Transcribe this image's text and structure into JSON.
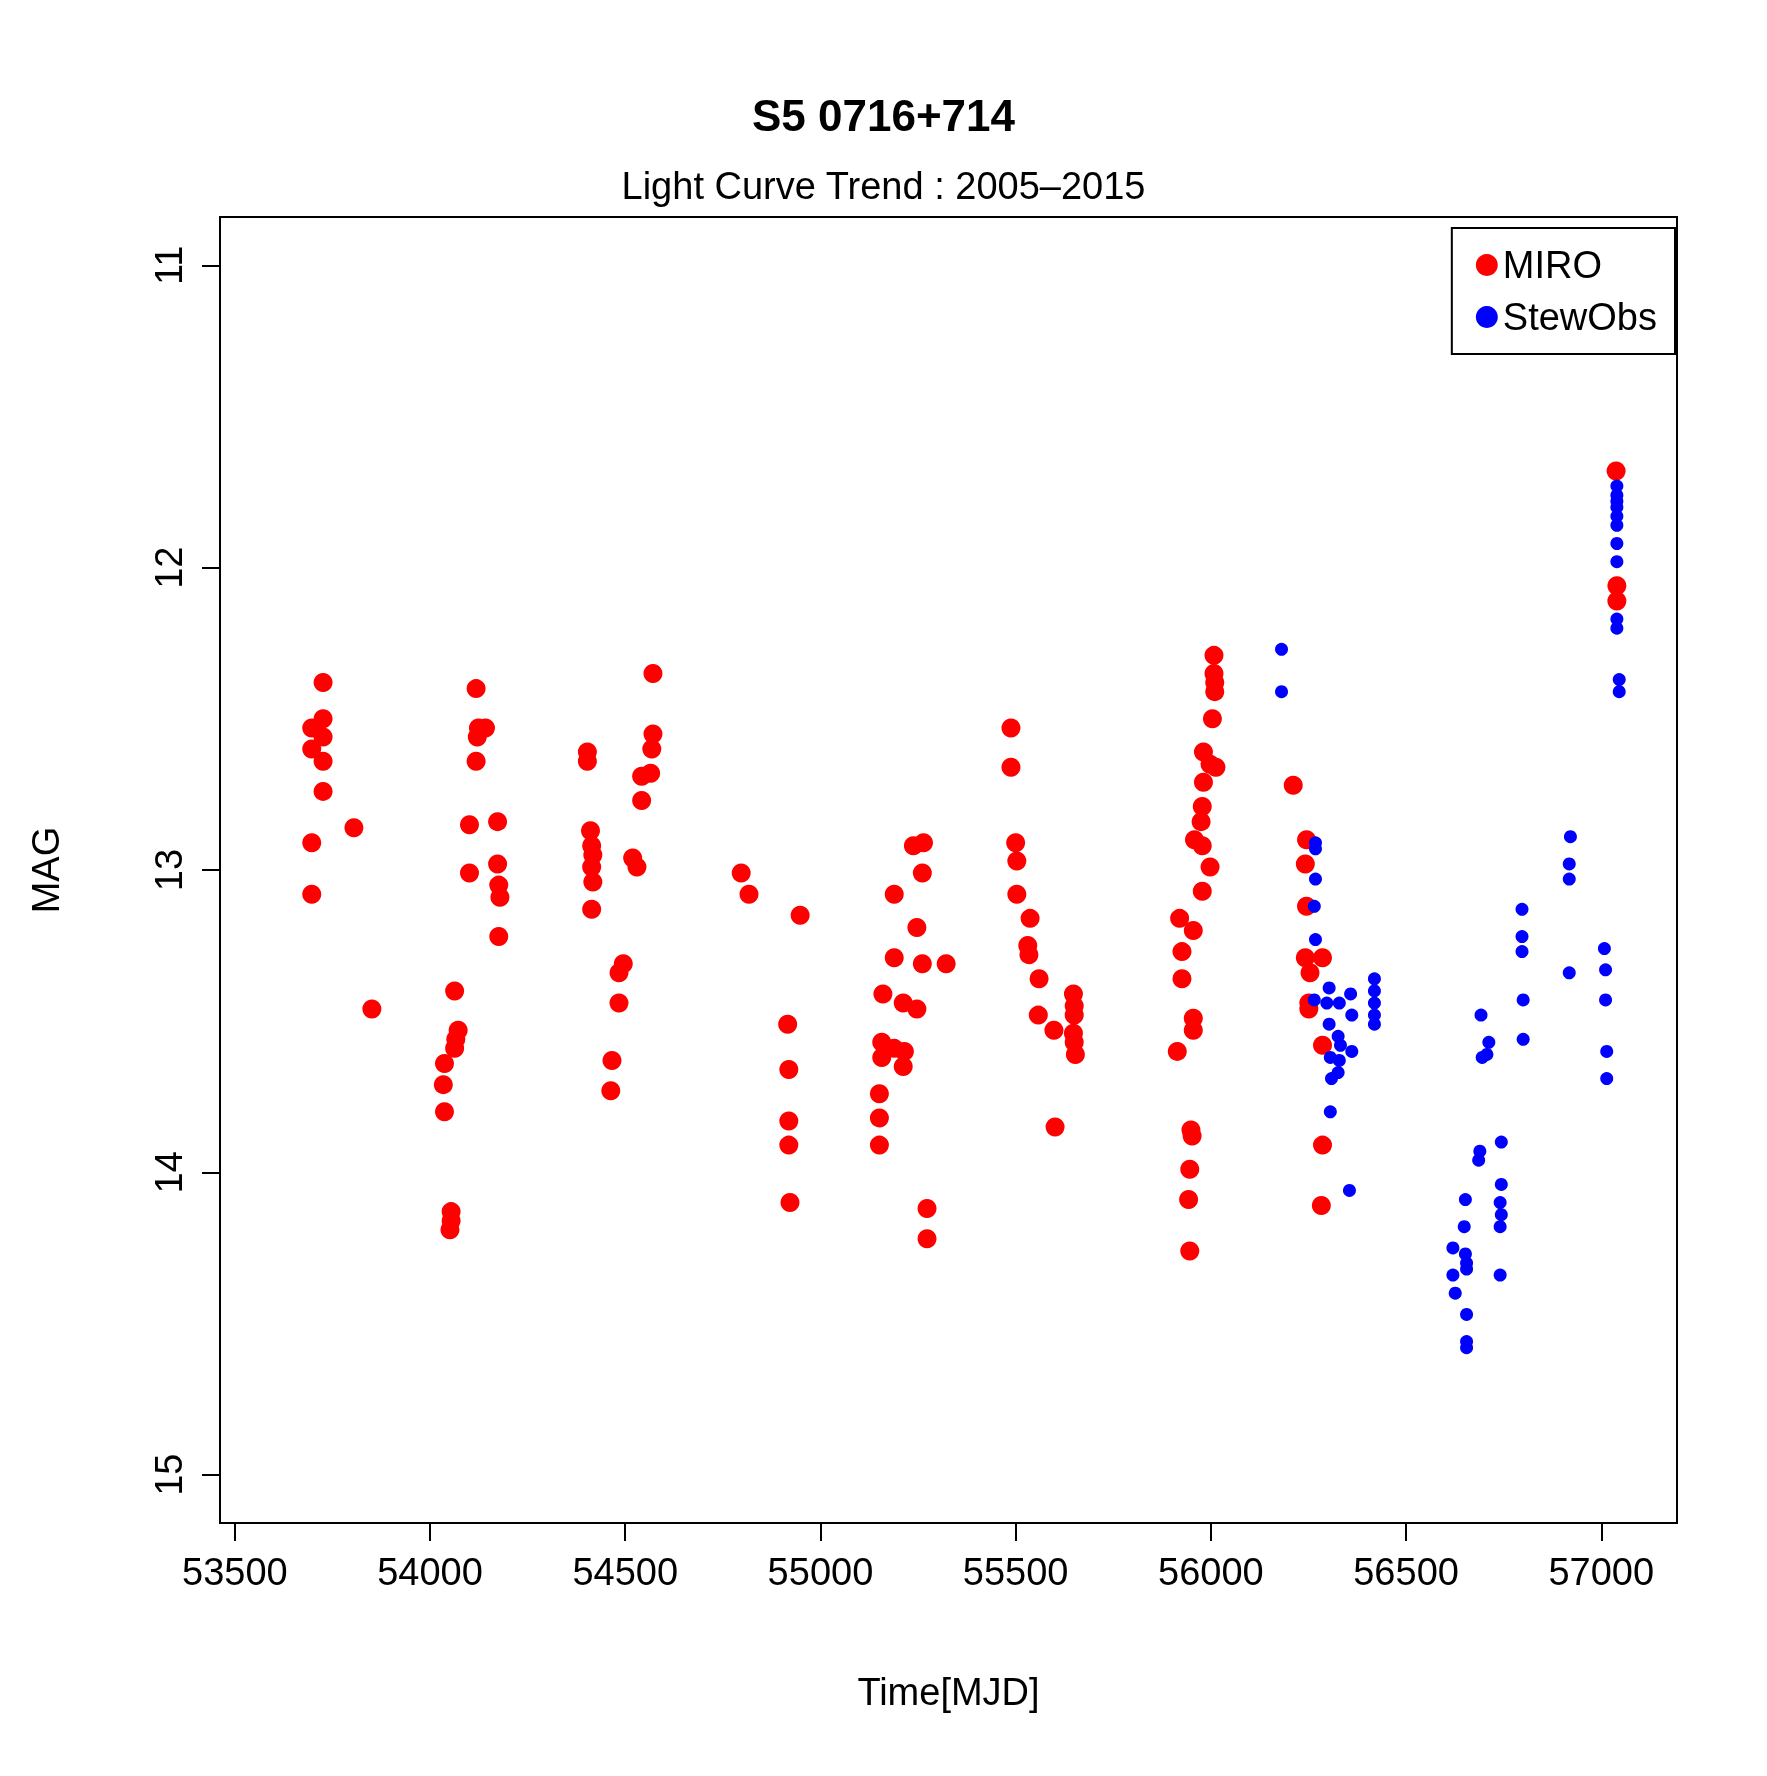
{
  "chart_data": {
    "type": "scatter",
    "title": "S5 0716+714",
    "subtitle": "Light Curve Trend : 2005–2015",
    "xlabel": "Time[MJD]",
    "ylabel": "MAG",
    "xlim": [
      53462,
      57194
    ],
    "ylim": [
      15.16,
      10.84
    ],
    "xticks": [
      53500,
      54000,
      54500,
      55000,
      55500,
      56000,
      56500,
      57000
    ],
    "yticks": [
      11,
      12,
      13,
      14,
      15
    ],
    "grid": false,
    "legend": "top right",
    "marker": "circle",
    "series": [
      {
        "name": "MIRO",
        "color": "#ff0000",
        "x": [
          53726,
          53697,
          53726,
          53726,
          53697,
          53726,
          53726,
          53697,
          53697,
          53805,
          53851,
          54063,
          54072,
          54066,
          54063,
          54037,
          54034,
          54037,
          54054,
          54054,
          54051,
          54118,
          54124,
          54142,
          54121,
          54118,
          54101,
          54173,
          54101,
          54173,
          54176,
          54179,
          54176,
          54403,
          54403,
          54411,
          54414,
          54417,
          54414,
          54417,
          54414,
          54519,
          54530,
          54542,
          54542,
          54565,
          54568,
          54571,
          54571,
          54495,
          54484,
          54484,
          54466,
          54463,
          54797,
          54817,
          54948,
          54916,
          54919,
          54919,
          54919,
          54922,
          55189,
          55189,
          55160,
          55212,
          55157,
          55157,
          55189,
          55215,
          55212,
          55151,
          55151,
          55151,
          55247,
          55247,
          55238,
          55264,
          55261,
          55261,
          55322,
          55273,
          55273,
          55488,
          55488,
          55500,
          55503,
          55503,
          55537,
          55531,
          55534,
          55560,
          55558,
          55598,
          55648,
          55650,
          55650,
          55648,
          55650,
          55653,
          55601,
          56008,
          56008,
          56010,
          56010,
          56004,
          55981,
          55998,
          56013,
          55981,
          55978,
          55975,
          55958,
          55978,
          55998,
          55978,
          55920,
          55955,
          55926,
          55926,
          55955,
          55955,
          55914,
          55949,
          55952,
          55946,
          55943,
          55946,
          56211,
          56245,
          56242,
          56245,
          56242,
          56286,
          56254,
          56251,
          56251,
          56286,
          56286,
          56283,
          57038,
          57040,
          57040
        ],
        "values": [
          12.38,
          12.53,
          12.5,
          12.56,
          12.6,
          12.64,
          12.74,
          12.91,
          13.08,
          12.86,
          13.46,
          13.4,
          13.53,
          13.56,
          13.59,
          13.64,
          13.71,
          13.8,
          14.13,
          14.16,
          14.19,
          12.4,
          12.53,
          12.53,
          12.56,
          12.64,
          12.85,
          12.84,
          13.01,
          12.98,
          13.05,
          13.09,
          13.22,
          12.61,
          12.64,
          12.87,
          12.92,
          12.95,
          12.99,
          13.04,
          13.13,
          12.96,
          12.99,
          12.77,
          12.69,
          12.68,
          12.6,
          12.55,
          12.35,
          13.31,
          13.34,
          13.44,
          13.63,
          13.73,
          13.01,
          13.08,
          13.15,
          13.51,
          13.66,
          13.83,
          13.91,
          14.1,
          13.08,
          13.29,
          13.41,
          13.44,
          13.57,
          13.62,
          13.59,
          13.6,
          13.65,
          13.74,
          13.82,
          13.91,
          13.19,
          13.46,
          12.92,
          12.91,
          13.01,
          13.31,
          13.31,
          14.12,
          14.22,
          12.53,
          12.66,
          12.91,
          12.97,
          13.08,
          13.16,
          13.25,
          13.28,
          13.36,
          13.48,
          13.53,
          13.41,
          13.45,
          13.48,
          13.54,
          13.57,
          13.61,
          13.85,
          12.29,
          12.35,
          12.38,
          12.41,
          12.5,
          12.61,
          12.65,
          12.66,
          12.71,
          12.79,
          12.84,
          12.9,
          12.92,
          12.99,
          13.07,
          13.16,
          13.2,
          13.27,
          13.36,
          13.49,
          13.53,
          13.6,
          13.86,
          13.88,
          13.99,
          14.09,
          14.26,
          12.72,
          12.9,
          12.98,
          13.12,
          13.29,
          13.29,
          13.34,
          13.44,
          13.46,
          13.58,
          13.91,
          14.11,
          11.68,
          12.06,
          12.11
        ]
      },
      {
        "name": "StewObs",
        "color": "#0000ff",
        "x": [
          56181,
          56181,
          56268,
          56268,
          56268,
          56265,
          56268,
          56265,
          56303,
          56297,
          56329,
          56358,
          56419,
          56419,
          56419,
          56419,
          56419,
          56361,
          56303,
          56326,
          56361,
          56332,
          56306,
          56329,
          56309,
          56326,
          56306,
          56355,
          56652,
          56649,
          56620,
          56652,
          56655,
          56620,
          56655,
          56626,
          56655,
          56655,
          56655,
          56689,
          56686,
          56744,
          56744,
          56741,
          56744,
          56741,
          56741,
          56692,
          56712,
          56707,
          56695,
          56797,
          56797,
          56797,
          56800,
          56800,
          56921,
          56918,
          56918,
          56918,
          57008,
          57011,
          57011,
          57014,
          57014,
          57040,
          57040,
          57040,
          57040,
          57040,
          57040,
          57040,
          57040,
          57040,
          57040,
          57046,
          57046
        ],
        "values": [
          12.27,
          12.41,
          12.91,
          12.93,
          13.03,
          13.12,
          13.23,
          13.43,
          13.39,
          13.44,
          13.44,
          13.41,
          13.36,
          13.4,
          13.44,
          13.48,
          13.51,
          13.48,
          13.51,
          13.55,
          13.6,
          13.58,
          13.62,
          13.63,
          13.69,
          13.67,
          13.8,
          14.06,
          14.09,
          14.18,
          14.25,
          14.27,
          14.3,
          14.34,
          14.32,
          14.4,
          14.47,
          14.56,
          14.58,
          13.93,
          13.96,
          13.9,
          14.04,
          14.1,
          14.14,
          14.18,
          14.34,
          13.48,
          13.57,
          13.61,
          13.62,
          13.13,
          13.22,
          13.27,
          13.43,
          13.56,
          12.89,
          12.98,
          13.03,
          13.34,
          13.26,
          13.33,
          13.43,
          13.6,
          13.69,
          11.73,
          11.76,
          11.78,
          11.8,
          11.83,
          11.86,
          11.92,
          11.98,
          12.17,
          12.2,
          12.37,
          12.41
        ]
      }
    ]
  }
}
